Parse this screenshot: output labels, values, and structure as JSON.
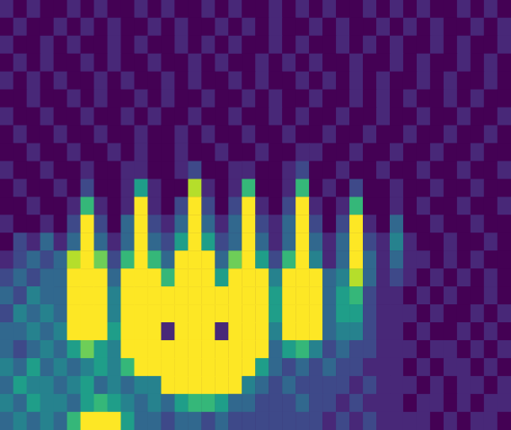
{
  "chart_data": {
    "type": "heatmap",
    "tick_labels": false,
    "zlim": [
      0,
      9
    ],
    "cells": [
      [
        1,
        0,
        1,
        0,
        0,
        1,
        0,
        1,
        0,
        0,
        1,
        0,
        1,
        0,
        0,
        1,
        0,
        1,
        0,
        0,
        1,
        0,
        1,
        0,
        1,
        0,
        0,
        1,
        0,
        1,
        0,
        1,
        0,
        0,
        1,
        0,
        1,
        0
      ],
      [
        0,
        1,
        0,
        0,
        1,
        0,
        1,
        0,
        1,
        0,
        0,
        1,
        0,
        1,
        0,
        0,
        1,
        0,
        1,
        0,
        1,
        0,
        0,
        1,
        0,
        1,
        0,
        0,
        1,
        0,
        1,
        0,
        1,
        0,
        0,
        1,
        0,
        1
      ],
      [
        1,
        0,
        0,
        1,
        0,
        1,
        0,
        0,
        1,
        0,
        1,
        0,
        0,
        1,
        0,
        1,
        0,
        1,
        0,
        0,
        1,
        0,
        1,
        0,
        0,
        1,
        0,
        1,
        0,
        1,
        0,
        0,
        1,
        0,
        1,
        0,
        0,
        1
      ],
      [
        0,
        1,
        0,
        1,
        0,
        0,
        1,
        0,
        1,
        0,
        0,
        1,
        0,
        0,
        1,
        0,
        1,
        0,
        0,
        1,
        0,
        1,
        0,
        1,
        0,
        0,
        1,
        0,
        0,
        1,
        0,
        1,
        0,
        0,
        1,
        0,
        1,
        0
      ],
      [
        1,
        0,
        1,
        0,
        1,
        0,
        0,
        1,
        0,
        1,
        0,
        0,
        1,
        0,
        1,
        0,
        0,
        1,
        0,
        1,
        0,
        0,
        1,
        0,
        1,
        0,
        1,
        0,
        1,
        0,
        0,
        1,
        0,
        1,
        0,
        0,
        1,
        0
      ],
      [
        0,
        0,
        1,
        0,
        0,
        1,
        0,
        1,
        0,
        0,
        1,
        0,
        1,
        0,
        0,
        1,
        0,
        0,
        1,
        0,
        1,
        0,
        0,
        1,
        0,
        0,
        1,
        0,
        1,
        0,
        1,
        0,
        0,
        1,
        0,
        1,
        0,
        0
      ],
      [
        1,
        0,
        0,
        1,
        0,
        0,
        1,
        0,
        0,
        1,
        0,
        1,
        0,
        0,
        1,
        0,
        0,
        1,
        0,
        0,
        1,
        0,
        1,
        0,
        0,
        1,
        0,
        0,
        1,
        0,
        0,
        1,
        0,
        0,
        1,
        0,
        0,
        1
      ],
      [
        0,
        1,
        0,
        0,
        1,
        0,
        0,
        1,
        0,
        0,
        1,
        0,
        0,
        1,
        0,
        1,
        0,
        0,
        1,
        0,
        0,
        1,
        0,
        0,
        1,
        0,
        0,
        1,
        0,
        0,
        1,
        0,
        0,
        1,
        0,
        0,
        1,
        0
      ],
      [
        0,
        0,
        1,
        0,
        0,
        1,
        0,
        0,
        1,
        0,
        1,
        0,
        0,
        1,
        0,
        0,
        1,
        0,
        0,
        1,
        0,
        0,
        1,
        1,
        0,
        0,
        1,
        0,
        0,
        1,
        0,
        0,
        1,
        0,
        0,
        1,
        0,
        0
      ],
      [
        1,
        0,
        0,
        1,
        0,
        0,
        1,
        0,
        0,
        1,
        1,
        0,
        0,
        1,
        2,
        0,
        0,
        1,
        1,
        0,
        0,
        1,
        2,
        0,
        0,
        1,
        0,
        0,
        1,
        0,
        0,
        1,
        0,
        0,
        1,
        0,
        0,
        1
      ],
      [
        0,
        1,
        0,
        0,
        1,
        0,
        2,
        0,
        0,
        1,
        5,
        1,
        0,
        0,
        8,
        1,
        0,
        1,
        6,
        0,
        0,
        1,
        6,
        0,
        1,
        0,
        2,
        0,
        0,
        1,
        0,
        0,
        1,
        0,
        0,
        1,
        0,
        0
      ],
      [
        0,
        0,
        1,
        0,
        0,
        1,
        6,
        1,
        0,
        1,
        9,
        1,
        0,
        2,
        9,
        2,
        0,
        2,
        9,
        1,
        0,
        2,
        9,
        1,
        0,
        1,
        6,
        0,
        0,
        1,
        0,
        1,
        0,
        0,
        1,
        0,
        0,
        1
      ],
      [
        1,
        0,
        0,
        1,
        0,
        2,
        9,
        2,
        0,
        3,
        9,
        2,
        1,
        3,
        9,
        3,
        1,
        3,
        9,
        2,
        1,
        3,
        9,
        2,
        0,
        2,
        9,
        1,
        0,
        3,
        0,
        0,
        1,
        0,
        0,
        1,
        0,
        0
      ],
      [
        0,
        2,
        1,
        3,
        1,
        3,
        9,
        3,
        1,
        3,
        9,
        3,
        2,
        5,
        9,
        5,
        2,
        3,
        9,
        3,
        1,
        3,
        9,
        3,
        1,
        3,
        9,
        2,
        1,
        4,
        1,
        0,
        0,
        1,
        0,
        0,
        1,
        0
      ],
      [
        1,
        2,
        3,
        2,
        3,
        8,
        9,
        7,
        2,
        6,
        9,
        6,
        3,
        9,
        9,
        9,
        3,
        7,
        9,
        5,
        2,
        6,
        9,
        4,
        1,
        3,
        9,
        3,
        1,
        3,
        1,
        1,
        0,
        1,
        0,
        1,
        0,
        0
      ],
      [
        2,
        3,
        2,
        3,
        3,
        9,
        9,
        9,
        3,
        9,
        9,
        9,
        6,
        9,
        9,
        9,
        5,
        9,
        9,
        9,
        4,
        9,
        9,
        9,
        3,
        4,
        8,
        3,
        1,
        2,
        1,
        0,
        1,
        0,
        1,
        0,
        1,
        0
      ],
      [
        3,
        2,
        4,
        3,
        3,
        9,
        9,
        9,
        4,
        9,
        9,
        9,
        9,
        9,
        9,
        9,
        9,
        9,
        9,
        9,
        5,
        9,
        9,
        9,
        3,
        5,
        6,
        2,
        1,
        1,
        0,
        1,
        0,
        1,
        0,
        0,
        1,
        0
      ],
      [
        2,
        4,
        3,
        4,
        3,
        9,
        9,
        9,
        4,
        9,
        9,
        9,
        9,
        9,
        9,
        9,
        9,
        9,
        9,
        9,
        5,
        9,
        9,
        9,
        3,
        5,
        5,
        2,
        1,
        1,
        1,
        0,
        1,
        0,
        0,
        1,
        0,
        1
      ],
      [
        3,
        3,
        4,
        3,
        4,
        9,
        9,
        9,
        5,
        9,
        9,
        9,
        1,
        9,
        9,
        9,
        1,
        9,
        9,
        9,
        4,
        9,
        9,
        9,
        3,
        4,
        4,
        2,
        1,
        1,
        0,
        1,
        0,
        0,
        1,
        0,
        1,
        0
      ],
      [
        3,
        2,
        3,
        4,
        3,
        5,
        7,
        5,
        4,
        9,
        9,
        9,
        9,
        9,
        9,
        9,
        9,
        9,
        9,
        9,
        3,
        5,
        6,
        4,
        2,
        3,
        2,
        2,
        1,
        1,
        1,
        0,
        1,
        1,
        0,
        1,
        0,
        1
      ],
      [
        4,
        3,
        5,
        3,
        4,
        3,
        4,
        5,
        4,
        6,
        9,
        9,
        9,
        9,
        9,
        9,
        9,
        9,
        9,
        5,
        3,
        2,
        3,
        2,
        3,
        2,
        2,
        1,
        1,
        1,
        0,
        1,
        0,
        1,
        1,
        0,
        1,
        0
      ],
      [
        3,
        5,
        4,
        4,
        3,
        4,
        5,
        3,
        4,
        3,
        4,
        4,
        9,
        9,
        9,
        9,
        9,
        9,
        4,
        3,
        2,
        3,
        2,
        2,
        2,
        2,
        1,
        2,
        1,
        1,
        1,
        0,
        1,
        0,
        1,
        1,
        0,
        1
      ],
      [
        4,
        3,
        5,
        4,
        4,
        3,
        5,
        6,
        5,
        4,
        3,
        4,
        3,
        5,
        6,
        6,
        5,
        3,
        3,
        2,
        2,
        2,
        3,
        2,
        2,
        1,
        2,
        1,
        1,
        1,
        0,
        1,
        1,
        0,
        1,
        0,
        1,
        1
      ],
      [
        3,
        4,
        3,
        4,
        3,
        6,
        9,
        9,
        9,
        5,
        3,
        3,
        2,
        3,
        3,
        2,
        3,
        2,
        2,
        2,
        2,
        2,
        2,
        2,
        1,
        2,
        1,
        2,
        1,
        1,
        1,
        1,
        0,
        1,
        0,
        1,
        1,
        0
      ]
    ]
  }
}
